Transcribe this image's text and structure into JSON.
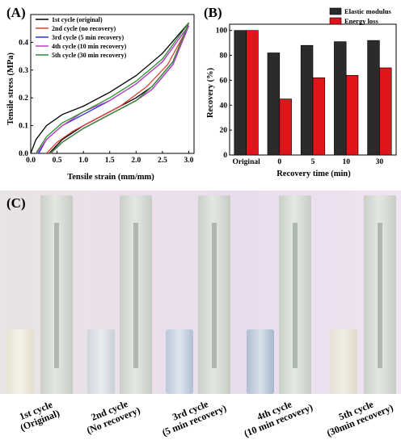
{
  "panels": {
    "a": {
      "letter": "(A)"
    },
    "b": {
      "letter": "(B)"
    },
    "c": {
      "letter": "(C)"
    }
  },
  "chart_data": [
    {
      "type": "line",
      "xlabel": "Tensile strain (mm/mm)",
      "ylabel": "Tensile stress (MPa)",
      "xlim": [
        0.0,
        3.1
      ],
      "ylim": [
        0.0,
        0.5
      ],
      "xticks": [
        "0.0",
        "0.5",
        "1.0",
        "1.5",
        "2.0",
        "2.5",
        "3.0"
      ],
      "yticks": [
        "0.0",
        "0.1",
        "0.2",
        "0.3",
        "0.4"
      ],
      "grid": false,
      "legend_position": "top-left",
      "series": [
        {
          "name": "1st cycle (original)",
          "color": "#000000",
          "loading": [
            [
              0.0,
              0.0
            ],
            [
              0.1,
              0.05
            ],
            [
              0.3,
              0.1
            ],
            [
              0.6,
              0.14
            ],
            [
              1.0,
              0.17
            ],
            [
              1.5,
              0.22
            ],
            [
              2.0,
              0.28
            ],
            [
              2.5,
              0.36
            ],
            [
              3.0,
              0.47
            ]
          ],
          "unloading": [
            [
              3.0,
              0.47
            ],
            [
              2.7,
              0.33
            ],
            [
              2.3,
              0.24
            ],
            [
              2.0,
              0.2
            ],
            [
              1.5,
              0.15
            ],
            [
              1.0,
              0.1
            ],
            [
              0.6,
              0.05
            ],
            [
              0.35,
              0.0
            ]
          ]
        },
        {
          "name": "2nd cycle (no recovery)",
          "color": "#e03c31",
          "loading": [
            [
              0.3,
              0.0
            ],
            [
              0.5,
              0.04
            ],
            [
              0.8,
              0.08
            ],
            [
              1.2,
              0.12
            ],
            [
              1.7,
              0.17
            ],
            [
              2.2,
              0.24
            ],
            [
              2.6,
              0.32
            ],
            [
              3.0,
              0.46
            ]
          ],
          "unloading": [
            [
              3.0,
              0.46
            ],
            [
              2.7,
              0.32
            ],
            [
              2.3,
              0.23
            ],
            [
              2.0,
              0.19
            ],
            [
              1.5,
              0.14
            ],
            [
              1.0,
              0.09
            ],
            [
              0.6,
              0.04
            ],
            [
              0.38,
              0.0
            ]
          ]
        },
        {
          "name": "3rd cycle (5 min recovery)",
          "color": "#2a35c9",
          "loading": [
            [
              0.15,
              0.0
            ],
            [
              0.3,
              0.05
            ],
            [
              0.6,
              0.1
            ],
            [
              1.0,
              0.14
            ],
            [
              1.5,
              0.19
            ],
            [
              2.0,
              0.25
            ],
            [
              2.5,
              0.33
            ],
            [
              3.0,
              0.46
            ]
          ],
          "unloading": [
            [
              3.0,
              0.46
            ],
            [
              2.7,
              0.32
            ],
            [
              2.3,
              0.23
            ],
            [
              2.0,
              0.19
            ],
            [
              1.5,
              0.14
            ],
            [
              1.0,
              0.09
            ],
            [
              0.6,
              0.04
            ],
            [
              0.37,
              0.0
            ]
          ]
        },
        {
          "name": "4th cycle (10 min recovery)",
          "color": "#c23ec9",
          "loading": [
            [
              0.12,
              0.0
            ],
            [
              0.3,
              0.05
            ],
            [
              0.6,
              0.1
            ],
            [
              1.0,
              0.15
            ],
            [
              1.5,
              0.19
            ],
            [
              2.0,
              0.25
            ],
            [
              2.5,
              0.33
            ],
            [
              3.0,
              0.46
            ]
          ],
          "unloading": [
            [
              3.0,
              0.46
            ],
            [
              2.7,
              0.32
            ],
            [
              2.3,
              0.23
            ],
            [
              2.0,
              0.19
            ],
            [
              1.5,
              0.14
            ],
            [
              1.0,
              0.09
            ],
            [
              0.6,
              0.04
            ],
            [
              0.37,
              0.0
            ]
          ]
        },
        {
          "name": "5th cycle (30 min recovery)",
          "color": "#2f8f2f",
          "loading": [
            [
              0.1,
              0.0
            ],
            [
              0.3,
              0.06
            ],
            [
              0.6,
              0.11
            ],
            [
              1.0,
              0.15
            ],
            [
              1.5,
              0.2
            ],
            [
              2.0,
              0.26
            ],
            [
              2.5,
              0.34
            ],
            [
              3.0,
              0.47
            ]
          ],
          "unloading": [
            [
              3.0,
              0.47
            ],
            [
              2.7,
              0.33
            ],
            [
              2.3,
              0.24
            ],
            [
              2.0,
              0.19
            ],
            [
              1.5,
              0.14
            ],
            [
              1.0,
              0.09
            ],
            [
              0.6,
              0.04
            ],
            [
              0.36,
              0.0
            ]
          ]
        }
      ]
    },
    {
      "type": "bar",
      "xlabel": "Recovery time (min)",
      "ylabel": "Recovery (%)",
      "ylim": [
        0,
        105
      ],
      "yticks": [
        "0",
        "20",
        "40",
        "60",
        "80",
        "100"
      ],
      "categories": [
        "Original",
        "0",
        "5",
        "10",
        "30"
      ],
      "legend_position": "top-right",
      "series": [
        {
          "name": "Elastic modulus",
          "color": "#2b2b2b",
          "values": [
            100,
            82,
            88,
            91,
            92
          ]
        },
        {
          "name": "Energy loss",
          "color": "#e0141b",
          "values": [
            100,
            45,
            62,
            64,
            70
          ]
        }
      ]
    }
  ],
  "photo": {
    "labels": [
      {
        "line1": "1st cycle",
        "line2": "(Original)"
      },
      {
        "line1": "2nd cycle",
        "line2": "(No recovery)"
      },
      {
        "line1": "3rd cycle",
        "line2": "(5 min recovery)"
      },
      {
        "line1": "4th cycle",
        "line2": "(10 min recovery)"
      },
      {
        "line1": "5th cycle",
        "line2": "(30min recovery)"
      }
    ]
  }
}
